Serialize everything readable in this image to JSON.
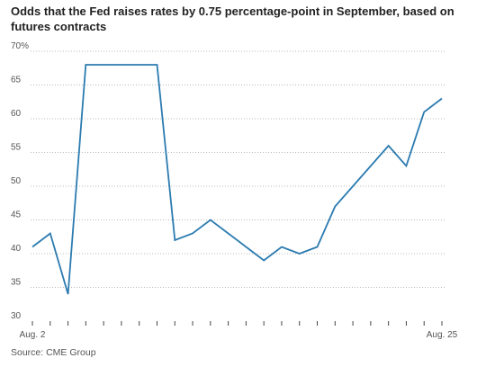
{
  "chart_data": {
    "type": "line",
    "title": "Odds that the Fed raises rates by 0.75 percentage-point in September, based on futures contracts",
    "source": "Source: CME Group",
    "y_ticks": [
      {
        "value": 70,
        "label": "70%"
      },
      {
        "value": 65,
        "label": "65"
      },
      {
        "value": 60,
        "label": "60"
      },
      {
        "value": 55,
        "label": "55"
      },
      {
        "value": 50,
        "label": "50"
      },
      {
        "value": 45,
        "label": "45"
      },
      {
        "value": 40,
        "label": "40"
      },
      {
        "value": 35,
        "label": "35"
      },
      {
        "value": 30,
        "label": "30"
      }
    ],
    "ylim": [
      30,
      70
    ],
    "x_labels": [
      {
        "index": 0,
        "label": "Aug. 2"
      },
      {
        "index": 23,
        "label": "Aug. 25"
      }
    ],
    "xlim": [
      0,
      23
    ],
    "grid": true,
    "series": [
      {
        "x": [
          0,
          1,
          2,
          3,
          4,
          5,
          6,
          7,
          8,
          9,
          10,
          11,
          12,
          13,
          14,
          15,
          16,
          17,
          18,
          19,
          20,
          21,
          22,
          23
        ],
        "values": [
          41,
          43,
          34,
          68,
          68,
          68,
          68,
          68,
          42,
          43,
          45,
          43,
          41,
          39,
          41,
          40,
          41,
          47,
          50,
          53,
          56,
          53,
          61,
          63
        ],
        "color": "#2b7bb0"
      }
    ],
    "x_tick_count": 24
  }
}
